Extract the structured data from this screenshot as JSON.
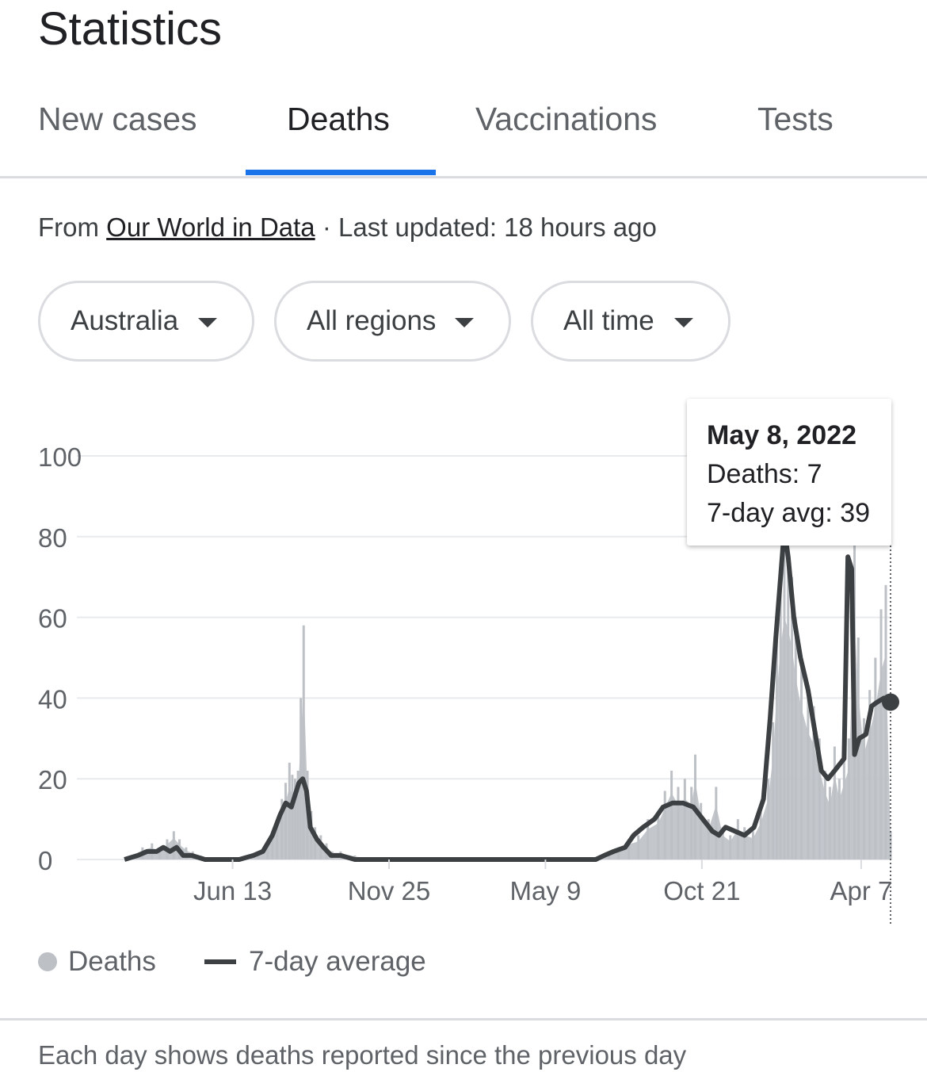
{
  "page_title": "Statistics",
  "tabs": [
    {
      "label": "New cases",
      "active": false
    },
    {
      "label": "Deaths",
      "active": true
    },
    {
      "label": "Vaccinations",
      "active": false
    },
    {
      "label": "Tests",
      "active": false
    }
  ],
  "accent_color": "#1a73e8",
  "source": {
    "prefix": "From",
    "link_text": "Our World in Data",
    "separator": "·",
    "updated": "Last updated: 18 hours ago"
  },
  "filters": [
    {
      "label": "Australia",
      "icon": "dropdown-caret-icon"
    },
    {
      "label": "All regions",
      "icon": "dropdown-caret-icon"
    },
    {
      "label": "All time",
      "icon": "dropdown-caret-icon"
    }
  ],
  "tooltip": {
    "date": "May 8, 2022",
    "deaths": "Deaths: 7",
    "avg": "7-day avg: 39"
  },
  "legend": {
    "deaths_label": "Deaths",
    "avg_label": "7-day average"
  },
  "footnote": "Each day shows deaths reported since the previous day",
  "chart_data": {
    "type": "bar",
    "x_start": "2020-01-25",
    "x_end": "2022-05-08",
    "xticks": [
      {
        "label": "Jun 13",
        "date": "2020-06-13"
      },
      {
        "label": "Nov 25",
        "date": "2020-11-25"
      },
      {
        "label": "May 9",
        "date": "2021-05-09"
      },
      {
        "label": "Oct 21",
        "date": "2021-10-21"
      },
      {
        "label": "Apr 7",
        "date": "2022-04-07"
      }
    ],
    "ylim": [
      0,
      100
    ],
    "yticks": [
      0,
      20,
      40,
      60,
      80,
      100
    ],
    "grid": true,
    "legend_position": "bottom-left",
    "series": [
      {
        "name": "Deaths",
        "kind": "daily_bars",
        "color": "#bdc1c6",
        "points": [
          [
            "2020-03-01",
            1
          ],
          [
            "2020-03-10",
            3
          ],
          [
            "2020-03-20",
            4
          ],
          [
            "2020-03-28",
            2
          ],
          [
            "2020-04-05",
            5
          ],
          [
            "2020-04-12",
            7
          ],
          [
            "2020-04-18",
            5
          ],
          [
            "2020-04-25",
            3
          ],
          [
            "2020-05-02",
            2
          ],
          [
            "2020-05-10",
            1
          ],
          [
            "2020-05-20",
            0
          ],
          [
            "2020-06-10",
            0
          ],
          [
            "2020-07-01",
            0
          ],
          [
            "2020-07-10",
            2
          ],
          [
            "2020-07-20",
            4
          ],
          [
            "2020-07-25",
            7
          ],
          [
            "2020-07-30",
            10
          ],
          [
            "2020-08-04",
            15
          ],
          [
            "2020-08-08",
            19
          ],
          [
            "2020-08-12",
            24
          ],
          [
            "2020-08-15",
            21
          ],
          [
            "2020-08-18",
            20
          ],
          [
            "2020-08-21",
            22
          ],
          [
            "2020-08-24",
            40
          ],
          [
            "2020-08-27",
            58
          ],
          [
            "2020-08-31",
            22
          ],
          [
            "2020-09-04",
            12
          ],
          [
            "2020-09-08",
            8
          ],
          [
            "2020-09-14",
            6
          ],
          [
            "2020-09-20",
            4
          ],
          [
            "2020-09-26",
            2
          ],
          [
            "2020-10-05",
            2
          ],
          [
            "2020-10-20",
            1
          ],
          [
            "2020-11-10",
            0
          ],
          [
            "2021-07-01",
            0
          ],
          [
            "2021-07-15",
            1
          ],
          [
            "2021-07-25",
            3
          ],
          [
            "2021-08-05",
            5
          ],
          [
            "2021-08-15",
            6
          ],
          [
            "2021-08-25",
            10
          ],
          [
            "2021-09-05",
            12
          ],
          [
            "2021-09-12",
            17
          ],
          [
            "2021-09-19",
            22
          ],
          [
            "2021-09-26",
            18
          ],
          [
            "2021-10-03",
            20
          ],
          [
            "2021-10-10",
            18
          ],
          [
            "2021-10-14",
            26
          ],
          [
            "2021-10-20",
            14
          ],
          [
            "2021-10-28",
            10
          ],
          [
            "2021-11-05",
            18
          ],
          [
            "2021-11-12",
            8
          ],
          [
            "2021-11-20",
            6
          ],
          [
            "2021-11-28",
            10
          ],
          [
            "2021-12-05",
            8
          ],
          [
            "2021-12-14",
            7
          ],
          [
            "2021-12-22",
            12
          ],
          [
            "2021-12-30",
            20
          ],
          [
            "2022-01-04",
            34
          ],
          [
            "2022-01-08",
            55
          ],
          [
            "2022-01-12",
            70
          ],
          [
            "2022-01-16",
            80
          ],
          [
            "2022-01-20",
            76
          ],
          [
            "2022-01-24",
            70
          ],
          [
            "2022-01-28",
            60
          ],
          [
            "2022-02-03",
            50
          ],
          [
            "2022-02-10",
            42
          ],
          [
            "2022-02-16",
            38
          ],
          [
            "2022-02-22",
            30
          ],
          [
            "2022-02-28",
            22
          ],
          [
            "2022-03-05",
            18
          ],
          [
            "2022-03-10",
            28
          ],
          [
            "2022-03-15",
            20
          ],
          [
            "2022-03-20",
            25
          ],
          [
            "2022-03-25",
            30
          ],
          [
            "2022-03-31",
            80
          ],
          [
            "2022-04-04",
            55
          ],
          [
            "2022-04-10",
            35
          ],
          [
            "2022-04-16",
            42
          ],
          [
            "2022-04-22",
            50
          ],
          [
            "2022-04-28",
            62
          ],
          [
            "2022-05-03",
            68
          ],
          [
            "2022-05-08",
            7
          ]
        ]
      },
      {
        "name": "7-day average",
        "kind": "line",
        "color": "#3c4043",
        "points": [
          [
            "2020-02-20",
            0
          ],
          [
            "2020-03-05",
            1
          ],
          [
            "2020-03-15",
            2
          ],
          [
            "2020-03-25",
            2
          ],
          [
            "2020-04-01",
            3
          ],
          [
            "2020-04-08",
            2
          ],
          [
            "2020-04-15",
            3
          ],
          [
            "2020-04-22",
            1
          ],
          [
            "2020-05-01",
            1
          ],
          [
            "2020-05-15",
            0
          ],
          [
            "2020-06-20",
            0
          ],
          [
            "2020-07-05",
            1
          ],
          [
            "2020-07-15",
            2
          ],
          [
            "2020-07-25",
            6
          ],
          [
            "2020-08-02",
            11
          ],
          [
            "2020-08-08",
            14
          ],
          [
            "2020-08-14",
            13
          ],
          [
            "2020-08-18",
            16
          ],
          [
            "2020-08-22",
            19
          ],
          [
            "2020-08-26",
            20
          ],
          [
            "2020-08-30",
            17
          ],
          [
            "2020-09-03",
            8
          ],
          [
            "2020-09-10",
            5
          ],
          [
            "2020-09-17",
            3
          ],
          [
            "2020-09-25",
            1
          ],
          [
            "2020-10-05",
            1
          ],
          [
            "2020-10-20",
            0
          ],
          [
            "2020-11-25",
            0
          ],
          [
            "2021-07-01",
            0
          ],
          [
            "2021-07-10",
            1
          ],
          [
            "2021-07-20",
            2
          ],
          [
            "2021-08-01",
            3
          ],
          [
            "2021-08-10",
            6
          ],
          [
            "2021-08-20",
            8
          ],
          [
            "2021-09-01",
            10
          ],
          [
            "2021-09-10",
            13
          ],
          [
            "2021-09-20",
            14
          ],
          [
            "2021-10-01",
            14
          ],
          [
            "2021-10-12",
            13
          ],
          [
            "2021-10-22",
            10
          ],
          [
            "2021-11-01",
            7
          ],
          [
            "2021-11-08",
            6
          ],
          [
            "2021-11-15",
            8
          ],
          [
            "2021-11-25",
            7
          ],
          [
            "2021-12-05",
            6
          ],
          [
            "2021-12-15",
            8
          ],
          [
            "2021-12-25",
            15
          ],
          [
            "2022-01-01",
            35
          ],
          [
            "2022-01-07",
            55
          ],
          [
            "2022-01-12",
            70
          ],
          [
            "2022-01-16",
            82
          ],
          [
            "2022-01-20",
            75
          ],
          [
            "2022-01-26",
            60
          ],
          [
            "2022-02-02",
            50
          ],
          [
            "2022-02-10",
            42
          ],
          [
            "2022-02-17",
            32
          ],
          [
            "2022-02-24",
            22
          ],
          [
            "2022-03-03",
            20
          ],
          [
            "2022-03-10",
            22
          ],
          [
            "2022-03-20",
            25
          ],
          [
            "2022-03-24",
            75
          ],
          [
            "2022-03-28",
            72
          ],
          [
            "2022-03-31",
            26
          ],
          [
            "2022-04-05",
            30
          ],
          [
            "2022-04-12",
            31
          ],
          [
            "2022-04-18",
            38
          ],
          [
            "2022-04-24",
            39
          ],
          [
            "2022-05-01",
            40
          ],
          [
            "2022-05-08",
            39
          ]
        ]
      }
    ],
    "highlight": {
      "date": "2022-05-08",
      "deaths": 7,
      "avg": 39
    }
  }
}
